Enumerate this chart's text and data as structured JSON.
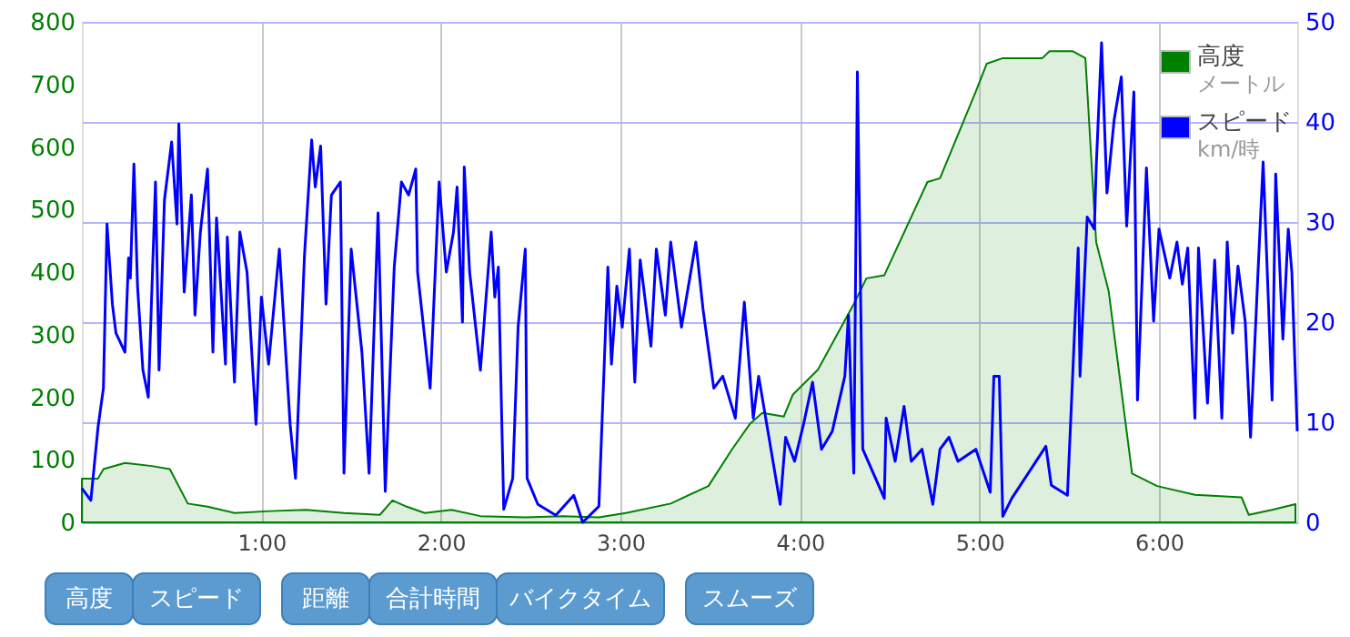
{
  "chart_data": {
    "type": "line",
    "xlim": [
      0,
      6.77
    ],
    "xticks": [
      {
        "value": 1,
        "label": "1:00"
      },
      {
        "value": 2,
        "label": "2:00"
      },
      {
        "value": 3,
        "label": "3:00"
      },
      {
        "value": 4,
        "label": "4:00"
      },
      {
        "value": 5,
        "label": "5:00"
      },
      {
        "value": 6,
        "label": "6:00"
      }
    ],
    "ylim": [
      0,
      800
    ],
    "yticks": [
      0,
      100,
      200,
      300,
      400,
      500,
      600,
      700,
      800
    ],
    "y2lim": [
      0,
      50
    ],
    "y2ticks": [
      0,
      10,
      20,
      30,
      40,
      50
    ],
    "grid": true,
    "legend": "top right",
    "annotations": [
      "メートル",
      "km/時",
      "高度",
      "スピード",
      "距離",
      "合計時間",
      "バイクタイム",
      "スムーズ"
    ],
    "series": [
      {
        "name": "高度",
        "type": "area",
        "color": "#008000",
        "x": [
          0,
          0.09,
          0.12,
          0.24,
          0.39,
          0.49,
          0.59,
          0.7,
          0.85,
          1.05,
          1.25,
          1.46,
          1.66,
          1.73,
          1.81,
          1.91,
          2.06,
          2.22,
          2.47,
          2.68,
          2.88,
          3.03,
          3.28,
          3.49,
          3.62,
          3.72,
          3.79,
          3.91,
          3.96,
          4.1,
          4.3,
          4.37,
          4.47,
          4.71,
          4.78,
          4.98,
          5.04,
          5.13,
          5.35,
          5.39,
          5.52,
          5.59,
          5.65,
          5.72,
          5.85,
          5.99,
          6.2,
          6.46,
          6.5,
          6.63,
          6.76
        ],
        "values": [
          70,
          70,
          85,
          95,
          90,
          85,
          30,
          25,
          15,
          18,
          20,
          15,
          12,
          35,
          25,
          15,
          20,
          10,
          8,
          10,
          8,
          15,
          30,
          58,
          116,
          157,
          175,
          169,
          204,
          244,
          349,
          390,
          395,
          544,
          550,
          689,
          733,
          742,
          742,
          753,
          753,
          742,
          448,
          369,
          78,
          58,
          44,
          40,
          12,
          20,
          29
        ]
      },
      {
        "name": "スピード",
        "axis": "y2",
        "color": "#0000ff",
        "x": [
          0.0,
          0.05,
          0.09,
          0.12,
          0.14,
          0.17,
          0.19,
          0.24,
          0.26,
          0.27,
          0.29,
          0.31,
          0.34,
          0.37,
          0.41,
          0.43,
          0.46,
          0.5,
          0.53,
          0.54,
          0.57,
          0.61,
          0.63,
          0.66,
          0.7,
          0.73,
          0.75,
          0.8,
          0.81,
          0.85,
          0.88,
          0.92,
          0.97,
          1.0,
          1.04,
          1.1,
          1.16,
          1.19,
          1.24,
          1.28,
          1.3,
          1.33,
          1.36,
          1.39,
          1.44,
          1.46,
          1.5,
          1.56,
          1.6,
          1.65,
          1.69,
          1.74,
          1.78,
          1.82,
          1.86,
          1.87,
          1.94,
          1.99,
          2.03,
          2.07,
          2.09,
          2.12,
          2.13,
          2.16,
          2.22,
          2.28,
          2.3,
          2.32,
          2.35,
          2.4,
          2.43,
          2.47,
          2.48,
          2.54,
          2.64,
          2.74,
          2.79,
          2.88,
          2.93,
          2.95,
          2.98,
          3.01,
          3.05,
          3.08,
          3.11,
          3.17,
          3.2,
          3.25,
          3.28,
          3.34,
          3.42,
          3.46,
          3.52,
          3.57,
          3.64,
          3.69,
          3.74,
          3.77,
          3.89,
          3.92,
          3.97,
          4.02,
          4.07,
          4.12,
          4.18,
          4.25,
          4.27,
          4.3,
          4.32,
          4.35,
          4.47,
          4.48,
          4.53,
          4.58,
          4.62,
          4.68,
          4.74,
          4.78,
          4.83,
          4.88,
          4.98,
          5.06,
          5.08,
          5.11,
          5.13,
          5.18,
          5.37,
          5.4,
          5.49,
          5.55,
          5.56,
          5.6,
          5.64,
          5.65,
          5.68,
          5.71,
          5.75,
          5.79,
          5.82,
          5.86,
          5.88,
          5.93,
          5.97,
          6.0,
          6.06,
          6.1,
          6.13,
          6.16,
          6.2,
          6.22,
          6.27,
          6.31,
          6.35,
          6.38,
          6.41,
          6.44,
          6.48,
          6.51,
          6.55,
          6.58,
          6.63,
          6.65,
          6.69,
          6.72,
          6.74,
          6.77
        ],
        "values": [
          3.4,
          2.2,
          9.5,
          13.4,
          29.8,
          21.8,
          18.9,
          17,
          26.4,
          24.4,
          35.8,
          23.6,
          15.2,
          12.5,
          34,
          15.2,
          32.2,
          38,
          29.8,
          39.8,
          23,
          32.7,
          20.7,
          29,
          35.3,
          17,
          30.4,
          15.8,
          28.5,
          14,
          29,
          25,
          9.8,
          22.5,
          15.8,
          27.3,
          9.8,
          4.4,
          26.7,
          38.2,
          33.5,
          37.6,
          21.8,
          32.7,
          34,
          4.9,
          27.3,
          17,
          4.9,
          30.9,
          3.1,
          25.5,
          34,
          32.7,
          35.3,
          25,
          13.4,
          34,
          25,
          29,
          33.5,
          20,
          35.5,
          25,
          15.2,
          29,
          22.5,
          25.5,
          1.3,
          4.4,
          19.5,
          27.3,
          4.4,
          1.8,
          0.7,
          2.7,
          0,
          1.6,
          25.5,
          15.8,
          23.6,
          19.5,
          27.3,
          14,
          26.2,
          17.6,
          27.3,
          20.7,
          28,
          19.5,
          28,
          21.3,
          13.4,
          14.6,
          10.4,
          22,
          10.4,
          14.6,
          1.8,
          8.5,
          6.1,
          9.8,
          14,
          7.3,
          9.1,
          14.6,
          20.7,
          4.9,
          45,
          7.3,
          2.4,
          10.4,
          6.1,
          11.6,
          6.1,
          7.3,
          1.8,
          7.3,
          8.5,
          6.1,
          7.3,
          3,
          14.6,
          14.6,
          0.6,
          2.4,
          7.6,
          3.7,
          2.7,
          27.4,
          14.6,
          30.5,
          29.3,
          35.4,
          47.9,
          32.9,
          40.2,
          44.5,
          29.6,
          43,
          12.2,
          35.4,
          20.1,
          29.3,
          24.4,
          28,
          23.8,
          27.4,
          10.4,
          27.4,
          11.9,
          26.2,
          10.4,
          28,
          18.9,
          25.6,
          20.1,
          8.5,
          24.4,
          36,
          12.2,
          34.8,
          18.3,
          29.3,
          25,
          9.1
        ]
      }
    ]
  }
}
